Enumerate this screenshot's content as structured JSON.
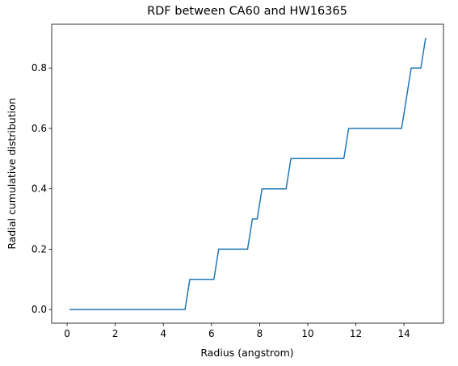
{
  "chart_data": {
    "type": "line",
    "title": "RDF between CA60 and HW16365",
    "xlabel": "Radius (angstrom)",
    "ylabel": "Radial cumulative distribution",
    "xlim": [
      -0.64,
      15.64
    ],
    "ylim": [
      -0.045,
      0.945
    ],
    "xticks": [
      0,
      2,
      4,
      6,
      8,
      10,
      12,
      14
    ],
    "yticks": [
      0.0,
      0.2,
      0.4,
      0.6,
      0.8
    ],
    "xtick_labels": [
      "0",
      "2",
      "4",
      "6",
      "8",
      "10",
      "12",
      "14"
    ],
    "ytick_labels": [
      "0.0",
      "0.2",
      "0.4",
      "0.6",
      "0.8"
    ],
    "grid": false,
    "line_color": "#1f77b4",
    "series": [
      {
        "x": [
          0.1,
          4.9,
          5.1,
          6.1,
          6.3,
          7.5,
          7.7,
          7.9,
          8.1,
          9.1,
          9.3,
          11.5,
          11.7,
          13.9,
          14.3,
          14.7,
          14.9
        ],
        "y": [
          0.0,
          0.0,
          0.1,
          0.1,
          0.2,
          0.2,
          0.3,
          0.3,
          0.4,
          0.4,
          0.5,
          0.5,
          0.6,
          0.6,
          0.8,
          0.8,
          0.9
        ]
      }
    ]
  }
}
